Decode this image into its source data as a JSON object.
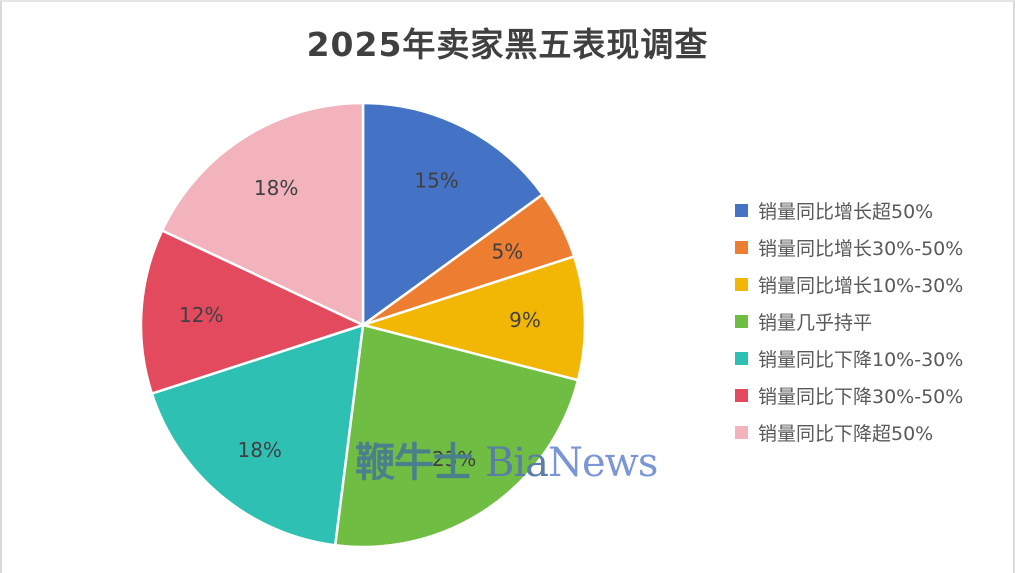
{
  "chart_data": {
    "type": "pie",
    "title": "2025年卖家黑五表现调查",
    "categories": [
      "销量同比增长超50%",
      "销量同比增长30%-50%",
      "销量同比增长10%-30%",
      "销量几乎持平",
      "销量同比下降10%-30%",
      "销量同比下降30%-50%",
      "销量同比下降超50%"
    ],
    "values": [
      15,
      5,
      9,
      23,
      18,
      12,
      18
    ],
    "labels": [
      "15%",
      "5%",
      "9%",
      "23%",
      "18%",
      "12%",
      "18%"
    ],
    "colors": [
      "#4472c4",
      "#ed7d31",
      "#f2b705",
      "#70bd44",
      "#2ec0b3",
      "#e34a5e",
      "#f2b3bd"
    ],
    "legend_position": "right",
    "start_angle": "12 o'clock, clockwise"
  },
  "watermark": {
    "cn": "鞭牛士 ",
    "en_a": "Bia",
    "en_b": "News"
  }
}
